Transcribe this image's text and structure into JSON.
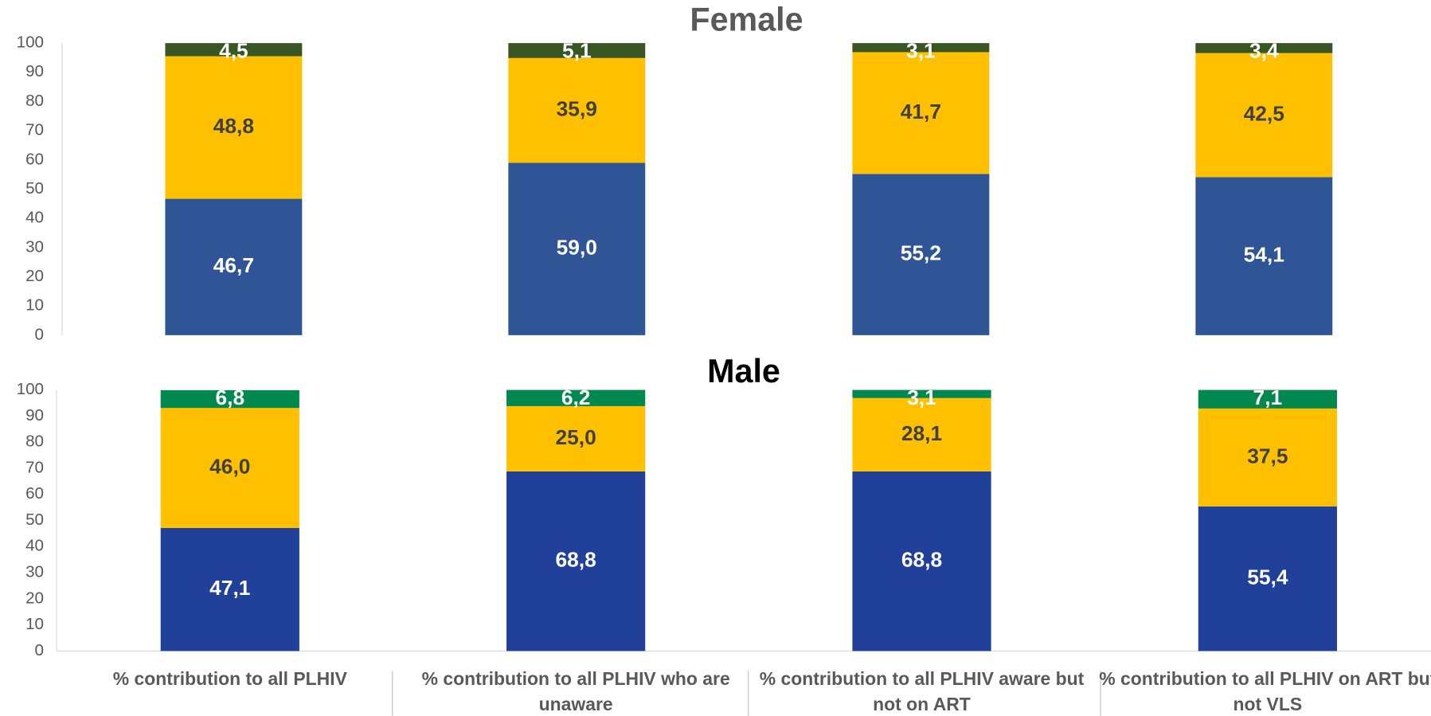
{
  "chart_data": [
    {
      "type": "bar",
      "stacked": true,
      "title": "Female",
      "series": [
        {
          "color": "#2f5597",
          "values": [
            46.7,
            59.0,
            55.2,
            54.1
          ],
          "value_labels": [
            "46,7",
            "59,0",
            "55,2",
            "54,1"
          ]
        },
        {
          "color": "#ffc000",
          "values": [
            48.8,
            35.9,
            41.7,
            42.5
          ],
          "value_labels": [
            "48,8",
            "35,9",
            "41,7",
            "42,5"
          ]
        },
        {
          "color": "#375623",
          "values": [
            4.5,
            5.1,
            3.1,
            3.4
          ],
          "value_labels": [
            "4,5",
            "5,1",
            "3,1",
            "3,4"
          ]
        }
      ],
      "ylim": [
        0,
        100
      ],
      "yticks": [
        0,
        10,
        20,
        30,
        40,
        50,
        60,
        70,
        80,
        90,
        100
      ],
      "grid": false
    },
    {
      "type": "bar",
      "stacked": true,
      "title": "Male",
      "categories": [
        "% contribution to all PLHIV",
        "% contribution to all PLHIV who are unaware",
        "% contribution to all  PLHIV aware but not on ART",
        "% contribution to all PLHIV on ART but not VLS"
      ],
      "series": [
        {
          "color": "#21409a",
          "values": [
            47.1,
            68.8,
            68.8,
            55.4
          ],
          "value_labels": [
            "47,1",
            "68,8",
            "68,8",
            "55,4"
          ]
        },
        {
          "color": "#ffc000",
          "values": [
            46.0,
            25.0,
            28.1,
            37.5
          ],
          "value_labels": [
            "46,0",
            "25,0",
            "28,1",
            "37,5"
          ]
        },
        {
          "color": "#00884f",
          "values": [
            6.8,
            6.2,
            3.1,
            7.1
          ],
          "value_labels": [
            "6,8",
            "6,2",
            "3,1",
            "7,1"
          ]
        }
      ],
      "ylim": [
        0,
        100
      ],
      "yticks": [
        0,
        10,
        20,
        30,
        40,
        50,
        60,
        70,
        80,
        90,
        100
      ],
      "grid": false
    }
  ]
}
